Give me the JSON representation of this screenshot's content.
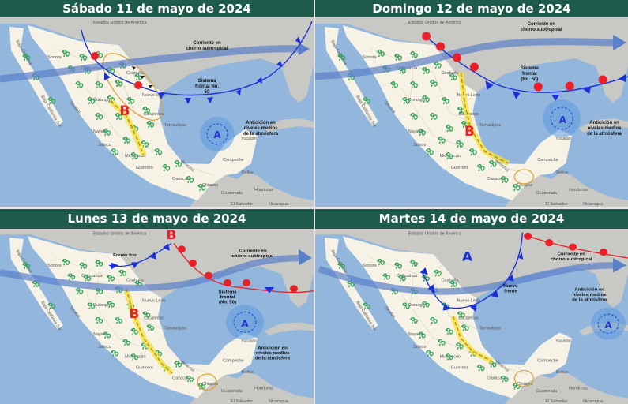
{
  "colors": {
    "header": "#1f5b4a",
    "sea": "#93b6dc",
    "mexico": "#f6f3e6",
    "neighbor_land": "#c8c8c4",
    "cold_front": "#1a2fd8",
    "warm_front": "#e8202a",
    "jet_stream": "#5b7fc9",
    "trough": "#f3e43a",
    "storm_icon": "#3aa35a"
  },
  "icons": {
    "storm": "thunderstorm-icon",
    "anticyclone": "anticyclone-icon"
  },
  "map_labels": {
    "usa": "Estados Unidos de América",
    "baja_california": "Baja California",
    "baja_california_sur": "Baja California Sur",
    "sonora": "Sonora",
    "chihuahua": "Chihuahua",
    "coahuila": "Coahuila",
    "nuevo_leon": "Nuevo León",
    "sinaloa": "Sinaloa",
    "durango": "Durango",
    "zacatecas": "Zacatecas",
    "tamaulipas": "Tamaulipas",
    "nayarit": "Nayarit",
    "jalisco": "Jalisco",
    "michoacan": "Michoacán",
    "guerrero": "Guerrero",
    "veracruz": "Veracruz",
    "oaxaca": "Oaxaca",
    "chiapas": "Chiapas",
    "campeche": "Campeche",
    "yucatan": "Yucatán",
    "belice": "Belice",
    "guatemala": "Guatemala",
    "honduras": "Honduras",
    "el_salvador": "El Salvador",
    "nicaragua": "Nicaragua"
  },
  "panels": [
    {
      "title": "Sábado 11 de mayo de 2024",
      "jet": [
        "Corriente en",
        "chorro subtropical"
      ],
      "front": [
        "Sistema",
        "frontal No.",
        "50"
      ],
      "anticyclone": [
        "Anticición en",
        "niveles medios",
        "de la atmósfera"
      ],
      "low": "B",
      "high": "A"
    },
    {
      "title": "Domingo 12 de mayo de 2024",
      "jet": [
        "Corriente en",
        "chorro subtropical"
      ],
      "front": [
        "Sistema",
        "frontal",
        "(No. 50)"
      ],
      "anticyclone": [
        "Anticición en",
        "niveles medios",
        "de la atmósfera"
      ],
      "low": "B",
      "high": "A"
    },
    {
      "title": "Lunes 13 de mayo de 2024",
      "cold_front": "Frente frío",
      "jet": [
        "Corriente en",
        "chorro subtropical"
      ],
      "front": [
        "Sistema",
        "frontal",
        "(No. 50)"
      ],
      "anticyclone": [
        "Anticición en",
        "niveles medios",
        "de la atmósfera"
      ],
      "low": "B",
      "low_north": "B",
      "high": "A"
    },
    {
      "title": "Martes 14 de mayo de 2024",
      "jet": [
        "Corriente en",
        "chorro subtropical"
      ],
      "new_front": [
        "Nuevo",
        "frente"
      ],
      "anticyclone": [
        "Anticición en",
        "niveles medios",
        "de la atmósfera"
      ],
      "high_north": "A",
      "high": "A"
    }
  ]
}
